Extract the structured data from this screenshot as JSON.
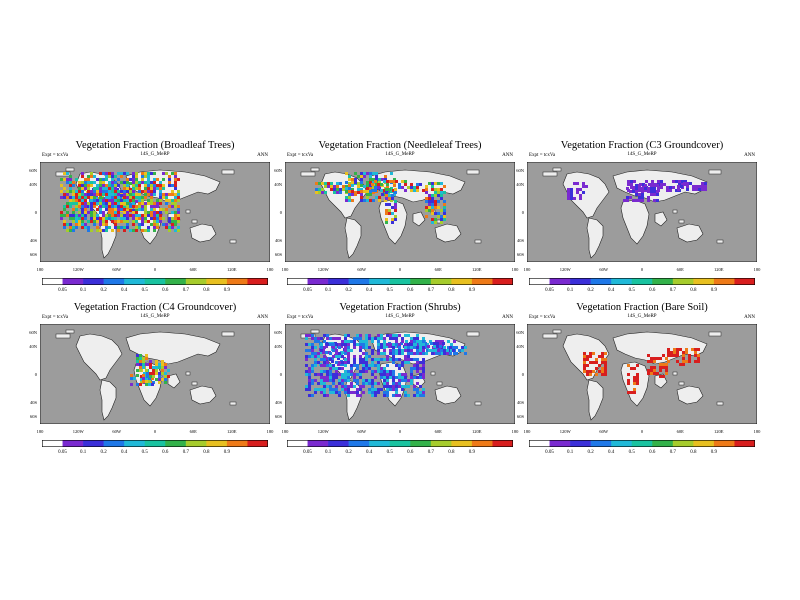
{
  "panels": [
    {
      "title": "Vegetation Fraction (Broadleaf Trees)",
      "subtitle": "14S_G_MeRP",
      "expt": "Expt = tcxVa",
      "period": "ANN",
      "palette": "rainbow",
      "cbar_labels": [
        "0.05",
        "0.1",
        "0.2",
        "0.4",
        "0.5",
        "0.6",
        "0.7",
        "0.8",
        "0.9"
      ]
    },
    {
      "title": "Vegetation Fraction (Needleleaf Trees)",
      "subtitle": "14S_G_MeRP",
      "expt": "Expt = tcxVa",
      "period": "ANN",
      "palette": "rainbow",
      "cbar_labels": [
        "0.05",
        "0.1",
        "0.2",
        "0.4",
        "0.5",
        "0.6",
        "0.7",
        "0.8",
        "0.9"
      ]
    },
    {
      "title": "Vegetation Fraction (C3 Groundcover)",
      "subtitle": "14S_G_MeRP",
      "expt": "Expt = tcxVa",
      "period": "ANN",
      "palette": "purple",
      "cbar_labels": [
        "0.05",
        "0.1",
        "0.2",
        "0.4",
        "0.5",
        "0.6",
        "0.7",
        "0.8",
        "0.9"
      ]
    },
    {
      "title": "Vegetation Fraction (C4 Groundcover)",
      "subtitle": "14S_G_MeRP",
      "expt": "Expt = tcxVa",
      "period": "ANN",
      "palette": "mixed",
      "cbar_labels": [
        "0.05",
        "0.1",
        "0.2",
        "0.4",
        "0.5",
        "0.6",
        "0.7",
        "0.8",
        "0.9"
      ]
    },
    {
      "title": "Vegetation Fraction (Shrubs)",
      "subtitle": "14S_G_MeRP",
      "expt": "Expt = tcxVa",
      "period": "ANN",
      "palette": "blue",
      "cbar_labels": [
        "0.05",
        "0.1",
        "0.2",
        "0.4",
        "0.5",
        "0.6",
        "0.7",
        "0.8",
        "0.9"
      ]
    },
    {
      "title": "Vegetation Fraction (Bare Soil)",
      "subtitle": "14S_G_MeRP",
      "expt": "Expt = tcxVa",
      "period": "ANN",
      "palette": "red",
      "cbar_labels": [
        "0.05",
        "0.1",
        "0.2",
        "0.4",
        "0.5",
        "0.6",
        "0.7",
        "0.8",
        "0.9"
      ]
    }
  ],
  "axes": {
    "y_ticks": [
      "60N",
      "40N",
      "0",
      "40S",
      "60S"
    ],
    "x_ticks": [
      "180",
      "120W",
      "60W",
      "0",
      "60E",
      "120E",
      "180"
    ]
  },
  "colors": {
    "ocean": "#9c9c9c",
    "land": "#eeeeee",
    "scale": [
      "#ffffff",
      "#7a2ad0",
      "#3b2fd9",
      "#1f78e8",
      "#20b9d8",
      "#19c3a0",
      "#33b24a",
      "#a6cc2c",
      "#e8c020",
      "#ee7a18",
      "#d81e1e"
    ]
  },
  "chart_data": {
    "type": "heatmap",
    "layout": "2x3 grid of global maps",
    "variable": "Vegetation Fraction",
    "colorbar_levels": [
      0.05,
      0.1,
      0.2,
      0.4,
      0.5,
      0.6,
      0.7,
      0.8,
      0.9
    ],
    "panels": [
      "Broadleaf Trees",
      "Needleleaf Trees",
      "C3 Groundcover",
      "C4 Groundcover",
      "Shrubs",
      "Bare Soil"
    ]
  }
}
